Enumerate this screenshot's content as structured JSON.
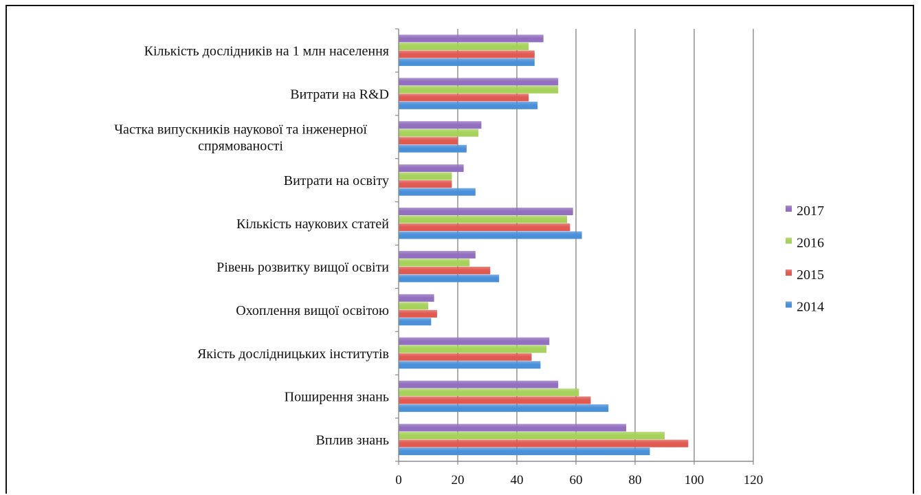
{
  "chart_data": {
    "type": "bar",
    "orientation": "horizontal",
    "categories": [
      "Вплив знань",
      "Поширення знань",
      "Якість дослідницьких інститутів",
      "Охоплення вищої освітою",
      "Рівень розвитку вищої освіти",
      "Кількість наукових статей",
      "Витрати на освіту",
      "Частка випускників наукової та інженерної спрямованості",
      "Витрати на R&D",
      "Кількість дослідників на 1 млн населення"
    ],
    "category_label_lines": [
      [
        "Вплив знань"
      ],
      [
        "Поширення знань"
      ],
      [
        "Якість дослідницьких інститутів"
      ],
      [
        "Охоплення вищої освітою"
      ],
      [
        "Рівень розвитку вищої освіти"
      ],
      [
        "Кількість наукових статей"
      ],
      [
        "Витрати на освіту"
      ],
      [
        "Частка випускників наукової та інженерної",
        "спрямованості"
      ],
      [
        "Витрати на R&D"
      ],
      [
        "Кількість дослідників на 1 млн населення"
      ]
    ],
    "series": [
      {
        "name": "2014",
        "color": "#4a90d9",
        "values": [
          85,
          71,
          48,
          11,
          34,
          62,
          26,
          23,
          47,
          46
        ]
      },
      {
        "name": "2015",
        "color": "#e05a52",
        "values": [
          98,
          65,
          45,
          13,
          31,
          58,
          18,
          20,
          44,
          46
        ]
      },
      {
        "name": "2016",
        "color": "#a6d15a",
        "values": [
          90,
          61,
          50,
          10,
          24,
          57,
          18,
          27,
          54,
          44
        ]
      },
      {
        "name": "2017",
        "color": "#9370bf",
        "values": [
          77,
          54,
          51,
          12,
          26,
          59,
          22,
          28,
          54,
          49
        ]
      }
    ],
    "legend_order": [
      "2017",
      "2016",
      "2015",
      "2014"
    ],
    "xlim": [
      0,
      120
    ],
    "xticks": [
      "0",
      "20",
      "40",
      "60",
      "80",
      "100",
      "120"
    ],
    "xlabel": "",
    "ylabel": "",
    "title": "",
    "grid": true,
    "legend_position": "right"
  }
}
